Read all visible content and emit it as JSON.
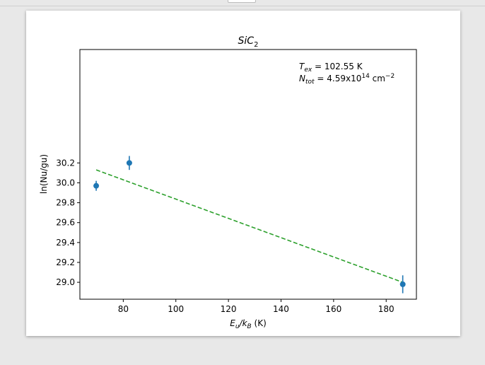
{
  "chart_data": {
    "type": "scatter",
    "title": "SiC",
    "title_sub": "2",
    "xlabel_main": "E",
    "xlabel_sub1": "u",
    "xlabel_slash": "/k",
    "xlabel_sub2": "B",
    "xlabel_unit": " (K)",
    "ylabel": "ln(Nu/gu)",
    "xlim": [
      63.5,
      191.5
    ],
    "ylim": [
      28.83,
      31.34
    ],
    "xticks": [
      80,
      100,
      120,
      140,
      160,
      180
    ],
    "yticks": [
      29.0,
      29.2,
      29.4,
      29.6,
      29.8,
      30.0,
      30.2
    ],
    "xtick_labels": [
      "80",
      "100",
      "120",
      "140",
      "160",
      "180"
    ],
    "ytick_labels": [
      "29.0",
      "29.2",
      "29.4",
      "29.6",
      "29.8",
      "30.0",
      "30.2"
    ],
    "points": [
      {
        "x": 69.7,
        "y": 29.97,
        "yerr": 0.05
      },
      {
        "x": 82.3,
        "y": 30.2,
        "yerr": 0.07
      },
      {
        "x": 186.3,
        "y": 28.98,
        "yerr": 0.09
      }
    ],
    "fit_line": {
      "x": [
        69.7,
        186.3
      ],
      "y": [
        30.13,
        29.0
      ]
    },
    "point_color": "#1f77b4",
    "fit_color": "#2ca02c",
    "annotation": {
      "tex_symbol": "T",
      "tex_sub": "ex",
      "tex_value": " = 102.55 K",
      "ntot_symbol": "N",
      "ntot_sub": "tot",
      "ntot_value_pre": " = 4.59x10",
      "ntot_exp": "14",
      "ntot_unit": " cm",
      "ntot_unit_exp": "−2"
    }
  }
}
